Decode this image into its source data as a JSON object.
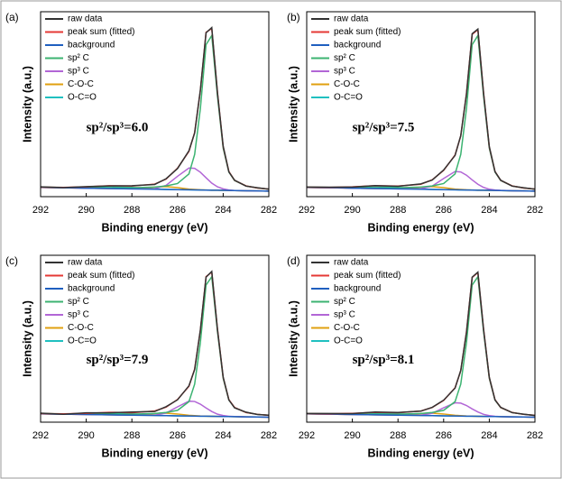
{
  "chart_data": [
    {
      "type": "line",
      "panel_label": "(a)",
      "annotation": "sp²/sp³=6.0",
      "xlabel": "Binding energy (eV)",
      "ylabel": "Intensity (a.u.)",
      "x": [
        292,
        291,
        290,
        289,
        288,
        287,
        286.5,
        286,
        285.5,
        285.25,
        285,
        284.75,
        284.5,
        284.25,
        284,
        283.75,
        283.5,
        283,
        282.5,
        282
      ],
      "xlim": [
        292,
        282
      ],
      "xticks": [
        292,
        290,
        288,
        286,
        284,
        282
      ],
      "ylim": [
        0,
        100
      ],
      "series": [
        {
          "name": "raw data",
          "color": "#333333",
          "values": [
            5.3,
            4.9,
            5.4,
            5.8,
            5.9,
            6.6,
            9.7,
            15.2,
            24.8,
            34.4,
            57.6,
            88.6,
            91.4,
            56.0,
            27.3,
            13.4,
            8.9,
            5.7,
            4.8,
            4.0
          ]
        },
        {
          "name": "peak sum (fitted)",
          "color": "#e53935",
          "values": [
            5.1,
            5.0,
            5.3,
            5.9,
            5.7,
            6.8,
            9.5,
            15.4,
            24.5,
            34.7,
            57.3,
            88.9,
            90.9,
            56.3,
            27.0,
            13.6,
            8.8,
            5.8,
            4.7,
            4.1
          ]
        },
        {
          "name": "background",
          "color": "#1f5fbf",
          "values": [
            5,
            4.8,
            4.6,
            4.4,
            4.2,
            4,
            3.9,
            3.8,
            3.7,
            3.65,
            3.6,
            3.55,
            3.5,
            3.45,
            3.4,
            3.35,
            3.3,
            3.2,
            3.1,
            3
          ]
        },
        {
          "name": "sp² C",
          "color": "#3cb371",
          "values": [
            5.1,
            5.0,
            4.9,
            4.8,
            4.8,
            5.2,
            5.8,
            7.1,
            12.3,
            22.8,
            47.6,
            82.2,
            87.1,
            54.3,
            26.2,
            13.3,
            8.7,
            5.8,
            4.7,
            4.1
          ]
        },
        {
          "name": "sp³ C",
          "color": "#b266d6",
          "values": [
            5,
            4.8,
            4.6,
            4.4,
            4.2,
            4.3,
            6.1,
            11.0,
            15.5,
            15.3,
            13.2,
            10.2,
            7.3,
            5.3,
            4.2,
            3.6,
            3.3,
            3.2,
            3.1,
            3
          ]
        },
        {
          "name": "C-O-C",
          "color": "#e0a010",
          "values": [
            5,
            4.8,
            4.6,
            4.4,
            4.3,
            5.1,
            5.4,
            4.9,
            4.1,
            3.9,
            3.7,
            3.6,
            3.5,
            3.45,
            3.4,
            3.35,
            3.3,
            3.2,
            3.1,
            3
          ]
        },
        {
          "name": "O-C=O",
          "color": "#20c0c0",
          "values": [
            5,
            4.8,
            5.0,
            5.6,
            5.0,
            4.1,
            3.9,
            3.8,
            3.7,
            3.65,
            3.6,
            3.55,
            3.5,
            3.45,
            3.4,
            3.35,
            3.3,
            3.2,
            3.1,
            3
          ]
        }
      ]
    },
    {
      "type": "line",
      "panel_label": "(b)",
      "annotation": "sp²/sp³=7.5",
      "xlabel": "Binding energy (eV)",
      "ylabel": "Intensity (a.u.)",
      "x": [
        292,
        291,
        290,
        289,
        288,
        287,
        286.5,
        286,
        285.5,
        285.25,
        285,
        284.75,
        284.5,
        284.25,
        284,
        283.75,
        283.5,
        283,
        282.5,
        282
      ],
      "xlim": [
        292,
        282
      ],
      "xticks": [
        292,
        290,
        288,
        286,
        284,
        282
      ],
      "ylim": [
        0,
        100
      ],
      "series": [
        {
          "name": "raw data",
          "color": "#333333",
          "values": [
            5.2,
            5.1,
            5.2,
            6.0,
            5.6,
            6.9,
            9.0,
            14.4,
            22.3,
            33.0,
            55.5,
            88.1,
            90.6,
            55.7,
            27.1,
            13.5,
            8.9,
            5.7,
            4.8,
            4.0
          ]
        },
        {
          "name": "peak sum (fitted)",
          "color": "#e53935",
          "values": [
            5.1,
            5.0,
            5.3,
            5.9,
            5.7,
            6.7,
            9.1,
            14.2,
            22.5,
            32.8,
            55.7,
            87.8,
            90.3,
            56.0,
            26.9,
            13.6,
            8.8,
            5.8,
            4.7,
            4.1
          ]
        },
        {
          "name": "background",
          "color": "#1f5fbf",
          "values": [
            5,
            4.8,
            4.6,
            4.4,
            4.2,
            4,
            3.9,
            3.8,
            3.7,
            3.65,
            3.6,
            3.55,
            3.5,
            3.45,
            3.4,
            3.35,
            3.3,
            3.2,
            3.1,
            3
          ]
        },
        {
          "name": "sp² C",
          "color": "#3cb371",
          "values": [
            5.1,
            5.0,
            4.9,
            4.8,
            4.8,
            5.2,
            5.8,
            7.1,
            12.3,
            22.8,
            47.6,
            82.2,
            87.1,
            54.3,
            26.2,
            13.3,
            8.7,
            5.8,
            4.7,
            4.1
          ]
        },
        {
          "name": "sp³ C",
          "color": "#b266d6",
          "values": [
            5,
            4.8,
            4.6,
            4.4,
            4.2,
            4.3,
            5.7,
            9.8,
            13.6,
            13.35,
            11.6,
            9.05,
            6.7,
            5.0,
            4.0,
            3.6,
            3.4,
            3.2,
            3.1,
            3
          ]
        },
        {
          "name": "C-O-C",
          "color": "#e0a010",
          "values": [
            5,
            4.8,
            4.6,
            4.4,
            4.3,
            5.1,
            5.4,
            4.9,
            4.1,
            3.9,
            3.7,
            3.6,
            3.5,
            3.45,
            3.4,
            3.35,
            3.3,
            3.2,
            3.1,
            3
          ]
        },
        {
          "name": "O-C=O",
          "color": "#20c0c0",
          "values": [
            5,
            4.8,
            5.0,
            5.6,
            5.0,
            4.1,
            3.9,
            3.8,
            3.7,
            3.65,
            3.6,
            3.55,
            3.5,
            3.45,
            3.4,
            3.35,
            3.3,
            3.2,
            3.1,
            3
          ]
        }
      ]
    },
    {
      "type": "line",
      "panel_label": "(c)",
      "annotation": "sp²/sp³=7.9",
      "xlabel": "Binding energy (eV)",
      "ylabel": "Intensity (a.u.)",
      "x": [
        292,
        291,
        290,
        289,
        288,
        287,
        286.5,
        286,
        285.5,
        285.25,
        285,
        284.75,
        284.5,
        284.25,
        284,
        283.75,
        283.5,
        283,
        282.5,
        282
      ],
      "xlim": [
        292,
        282
      ],
      "xticks": [
        292,
        290,
        288,
        286,
        284,
        282
      ],
      "ylim": [
        0,
        100
      ],
      "series": [
        {
          "name": "raw data",
          "color": "#333333",
          "values": [
            5.4,
            4.7,
            5.6,
            5.6,
            6.1,
            6.4,
            9.3,
            13.4,
            21.8,
            31.5,
            55.2,
            86.9,
            90.3,
            55.5,
            27.0,
            13.3,
            8.6,
            6.0,
            4.6,
            4.2
          ]
        },
        {
          "name": "peak sum (fitted)",
          "color": "#e53935",
          "values": [
            5.1,
            5.0,
            5.3,
            5.9,
            5.7,
            6.7,
            9.0,
            13.6,
            21.5,
            31.8,
            54.9,
            87.2,
            89.9,
            55.8,
            26.8,
            13.5,
            8.8,
            5.8,
            4.7,
            4.1
          ]
        },
        {
          "name": "background",
          "color": "#1f5fbf",
          "values": [
            5,
            4.8,
            4.6,
            4.4,
            4.2,
            4,
            3.9,
            3.8,
            3.7,
            3.65,
            3.6,
            3.55,
            3.5,
            3.45,
            3.4,
            3.35,
            3.3,
            3.2,
            3.1,
            3
          ]
        },
        {
          "name": "sp² C",
          "color": "#3cb371",
          "values": [
            5.1,
            5.0,
            4.9,
            4.8,
            4.8,
            5.2,
            5.8,
            7.1,
            12.3,
            22.8,
            47.6,
            82.2,
            87.1,
            54.3,
            26.2,
            13.3,
            8.7,
            5.8,
            4.7,
            4.1
          ]
        },
        {
          "name": "sp³ C",
          "color": "#b266d6",
          "values": [
            5,
            4.8,
            4.6,
            4.4,
            4.2,
            4.2,
            5.5,
            9.2,
            12.6,
            12.4,
            10.8,
            8.5,
            6.4,
            4.8,
            4.0,
            3.5,
            3.4,
            3.2,
            3.1,
            3
          ]
        },
        {
          "name": "C-O-C",
          "color": "#e0a010",
          "values": [
            5,
            4.8,
            4.6,
            4.4,
            4.3,
            5.1,
            5.4,
            4.9,
            4.1,
            3.9,
            3.7,
            3.6,
            3.5,
            3.45,
            3.4,
            3.35,
            3.3,
            3.2,
            3.1,
            3
          ]
        },
        {
          "name": "O-C=O",
          "color": "#20c0c0",
          "values": [
            5,
            4.8,
            5.0,
            5.6,
            5.0,
            4.1,
            3.9,
            3.8,
            3.7,
            3.65,
            3.6,
            3.55,
            3.5,
            3.45,
            3.4,
            3.35,
            3.3,
            3.2,
            3.1,
            3
          ]
        }
      ]
    },
    {
      "type": "line",
      "panel_label": "(d)",
      "annotation": "sp²/sp³=8.1",
      "xlabel": "Binding energy (eV)",
      "ylabel": "Intensity (a.u.)",
      "x": [
        292,
        291,
        290,
        289,
        288,
        287,
        286.5,
        286,
        285.5,
        285.25,
        285,
        284.75,
        284.5,
        284.25,
        284,
        283.75,
        283.5,
        283,
        282.5,
        282
      ],
      "xlim": [
        292,
        282
      ],
      "xticks": [
        292,
        290,
        288,
        286,
        284,
        282
      ],
      "ylim": [
        0,
        100
      ],
      "series": [
        {
          "name": "raw data",
          "color": "#333333",
          "values": [
            5.2,
            5.2,
            5.1,
            6.1,
            5.8,
            6.6,
            8.9,
            13.2,
            20.4,
            31.0,
            53.8,
            86.9,
            89.9,
            55.4,
            26.9,
            13.3,
            8.9,
            5.7,
            4.8,
            4.0
          ]
        },
        {
          "name": "peak sum (fitted)",
          "color": "#e53935",
          "values": [
            5.1,
            5.0,
            5.3,
            5.9,
            5.7,
            6.7,
            8.8,
            13.0,
            20.6,
            30.8,
            54.1,
            86.7,
            89.6,
            55.7,
            26.7,
            13.5,
            8.8,
            5.8,
            4.7,
            4.1
          ]
        },
        {
          "name": "background",
          "color": "#1f5fbf",
          "values": [
            5,
            4.8,
            4.6,
            4.4,
            4.2,
            4,
            3.9,
            3.8,
            3.7,
            3.65,
            3.6,
            3.55,
            3.5,
            3.45,
            3.4,
            3.35,
            3.3,
            3.2,
            3.1,
            3
          ]
        },
        {
          "name": "sp² C",
          "color": "#3cb371",
          "values": [
            5.1,
            5.0,
            4.9,
            4.8,
            4.8,
            5.2,
            5.8,
            7.1,
            12.3,
            22.8,
            47.6,
            82.2,
            87.1,
            54.3,
            26.2,
            13.3,
            8.7,
            5.8,
            4.7,
            4.1
          ]
        },
        {
          "name": "sp³ C",
          "color": "#b266d6",
          "values": [
            5,
            4.8,
            4.6,
            4.4,
            4.2,
            4.2,
            5.3,
            8.6,
            11.6,
            11.4,
            10.0,
            7.95,
            6.1,
            4.7,
            3.9,
            3.5,
            3.3,
            3.2,
            3.1,
            3
          ]
        },
        {
          "name": "C-O-C",
          "color": "#e0a010",
          "values": [
            5,
            4.8,
            4.6,
            4.4,
            4.3,
            5.1,
            5.4,
            4.9,
            4.1,
            3.9,
            3.7,
            3.6,
            3.5,
            3.45,
            3.4,
            3.35,
            3.3,
            3.2,
            3.1,
            3
          ]
        },
        {
          "name": "O-C=O",
          "color": "#20c0c0",
          "values": [
            5,
            4.8,
            5.0,
            5.6,
            5.0,
            4.1,
            3.9,
            3.8,
            3.7,
            3.65,
            3.6,
            3.55,
            3.5,
            3.45,
            3.4,
            3.35,
            3.3,
            3.2,
            3.1,
            3
          ]
        }
      ]
    }
  ]
}
